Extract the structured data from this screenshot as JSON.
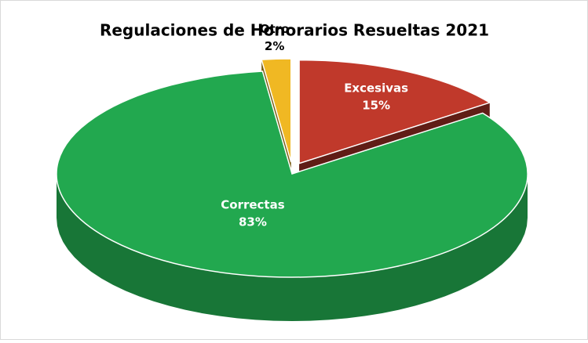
{
  "chart_data": {
    "type": "pie3d",
    "title": "Regulaciones de Honorarios Resueltas 2021",
    "categories": [
      "Excesivas",
      "Correctas",
      "Otro"
    ],
    "values": [
      15,
      83,
      2
    ],
    "value_labels": [
      "15%",
      "83%",
      "2%"
    ],
    "colors": [
      "#c0392b",
      "#22a84f",
      "#f0b823"
    ]
  }
}
